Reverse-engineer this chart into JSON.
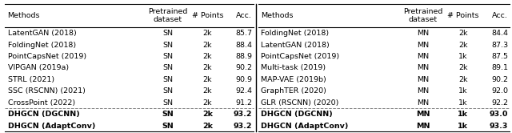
{
  "left_table": {
    "headers": [
      "Methods",
      "Pretrained\ndataset",
      "# Points",
      "Acc."
    ],
    "rows": [
      [
        "LatentGAN (2018)",
        "SN",
        "2k",
        "85.7"
      ],
      [
        "FoldingNet (2018)",
        "SN",
        "2k",
        "88.4"
      ],
      [
        "PointCapsNet (2019)",
        "SN",
        "2k",
        "88.9"
      ],
      [
        "VIPGAN (2019a)",
        "SN",
        "2k",
        "90.2"
      ],
      [
        "STRL (2021)",
        "SN",
        "2k",
        "90.9"
      ],
      [
        "SSC (RSCNN) (2021)",
        "SN",
        "2k",
        "92.4"
      ],
      [
        "CrossPoint (2022)",
        "SN",
        "2k",
        "91.2"
      ]
    ],
    "bold_rows": [
      [
        "DHGCN (DGCNN)",
        "SN",
        "2k",
        "93.2"
      ],
      [
        "DHGCN (AdaptConv)",
        "SN",
        "2k",
        "93.2"
      ]
    ]
  },
  "right_table": {
    "headers": [
      "Methods",
      "Pretrained\ndataset",
      "# Points",
      "Acc."
    ],
    "rows": [
      [
        "FoldingNet (2018)",
        "MN",
        "2k",
        "84.4"
      ],
      [
        "LatentGAN (2018)",
        "MN",
        "2k",
        "87.3"
      ],
      [
        "PointCapsNet (2019)",
        "MN",
        "1k",
        "87.5"
      ],
      [
        "Multi-task (2019)",
        "MN",
        "2k",
        "89.1"
      ],
      [
        "MAP-VAE (2019b)",
        "MN",
        "2k",
        "90.2"
      ],
      [
        "GraphTER (2020)",
        "MN",
        "1k",
        "92.0"
      ],
      [
        "GLR (RSCNN) (2020)",
        "MN",
        "1k",
        "92.2"
      ]
    ],
    "bold_rows": [
      [
        "DHGCN (DGCNN)",
        "MN",
        "1k",
        "93.0"
      ],
      [
        "DHGCN (AdaptConv)",
        "MN",
        "1k",
        "93.3"
      ]
    ]
  },
  "font_size": 6.8,
  "fig_width": 6.4,
  "fig_height": 1.66,
  "dpi": 100
}
